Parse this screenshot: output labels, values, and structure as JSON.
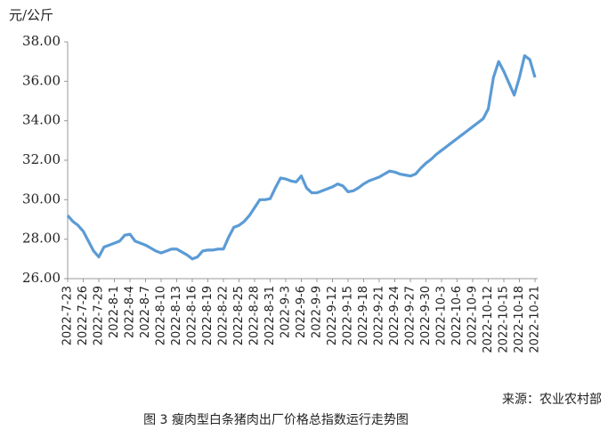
{
  "chart_data": {
    "type": "line",
    "y_label": "元/公斤",
    "source": "来源：农业农村部",
    "caption": "图 3  瘦肉型白条猪肉出厂价格总指数运行走势图",
    "categories": [
      "2022-7-23",
      null,
      null,
      "2022-7-26",
      null,
      null,
      "2022-7-29",
      null,
      null,
      "2022-8-1",
      null,
      null,
      "2022-8-4",
      null,
      null,
      "2022-8-7",
      null,
      null,
      "2022-8-10",
      null,
      null,
      "2022-8-13",
      null,
      null,
      "2022-8-16",
      null,
      null,
      "2022-8-19",
      null,
      null,
      "2022-8-22",
      null,
      null,
      "2022-8-25",
      null,
      null,
      "2022-8-28",
      null,
      null,
      "2022-8-31",
      null,
      null,
      "2022-9-3",
      null,
      null,
      "2022-9-6",
      null,
      null,
      "2022-9-9",
      null,
      null,
      "2022-9-12",
      null,
      null,
      "2022-9-15",
      null,
      null,
      "2022-9-18",
      null,
      null,
      "2022-9-21",
      null,
      null,
      "2022-9-24",
      null,
      null,
      "2022-9-27",
      null,
      null,
      "2022-9-30",
      null,
      null,
      "2022-10-3",
      null,
      null,
      "2022-10-6",
      null,
      null,
      "2022-10-9",
      null,
      null,
      "2022-10-12",
      null,
      null,
      "2022-10-15",
      null,
      null,
      "2022-10-18",
      null,
      null,
      "2022-10-21"
    ],
    "values": [
      29.2,
      28.9,
      28.7,
      28.4,
      27.9,
      27.4,
      27.1,
      27.6,
      27.7,
      27.8,
      27.9,
      28.2,
      28.25,
      27.9,
      27.8,
      27.7,
      27.55,
      27.4,
      27.3,
      27.4,
      27.5,
      27.5,
      27.35,
      27.2,
      27.0,
      27.1,
      27.4,
      27.45,
      27.45,
      27.5,
      27.5,
      28.1,
      28.6,
      28.7,
      28.9,
      29.2,
      29.6,
      30.0,
      30.0,
      30.05,
      30.6,
      31.1,
      31.05,
      30.95,
      30.9,
      31.2,
      30.6,
      30.35,
      30.35,
      30.45,
      30.55,
      30.65,
      30.8,
      30.7,
      30.4,
      30.45,
      30.6,
      30.8,
      30.95,
      31.05,
      31.15,
      31.3,
      31.45,
      31.4,
      31.3,
      31.25,
      31.2,
      31.3,
      31.6,
      31.85,
      32.05,
      32.3,
      32.5,
      32.7,
      32.9,
      33.1,
      33.3,
      33.5,
      33.7,
      33.9,
      34.1,
      34.6,
      36.2,
      37.0,
      36.5,
      35.9,
      35.3,
      36.2,
      37.3,
      37.1,
      36.2
    ],
    "color": "#5b9bd5",
    "ylim": [
      26,
      38
    ],
    "yticks": [
      {
        "value": 26,
        "label": "26.00"
      },
      {
        "value": 28,
        "label": "28.00"
      },
      {
        "value": 30,
        "label": "30.00"
      },
      {
        "value": 32,
        "label": "32.00"
      },
      {
        "value": 34,
        "label": "34.00"
      },
      {
        "value": 36,
        "label": "36.00"
      },
      {
        "value": 38,
        "label": "38.00"
      }
    ],
    "grid": false
  }
}
